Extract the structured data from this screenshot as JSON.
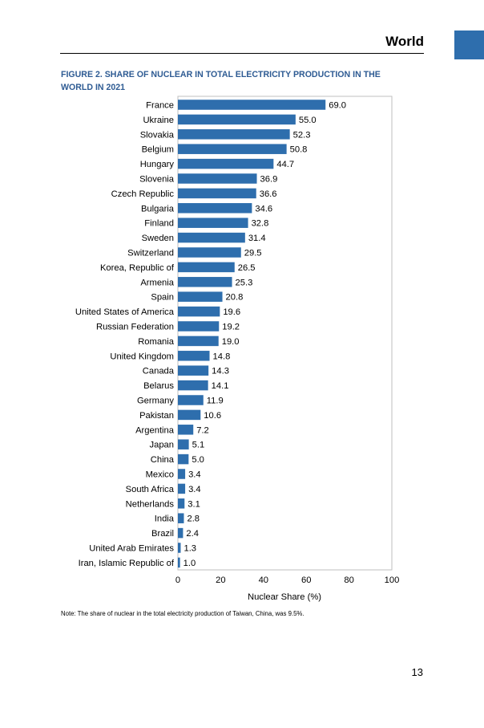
{
  "header": {
    "title": "World"
  },
  "figure": {
    "title": "FIGURE 2. SHARE OF NUCLEAR IN TOTAL ELECTRICITY PRODUCTION IN THE WORLD IN 2021"
  },
  "colors": {
    "bar": "#2e6ead",
    "title": "#2e5b93",
    "tab": "#2e6ead"
  },
  "chart_data": {
    "type": "bar",
    "orientation": "horizontal",
    "categories": [
      "France",
      "Ukraine",
      "Slovakia",
      "Belgium",
      "Hungary",
      "Slovenia",
      "Czech Republic",
      "Bulgaria",
      "Finland",
      "Sweden",
      "Switzerland",
      "Korea, Republic of",
      "Armenia",
      "Spain",
      "United States of America",
      "Russian Federation",
      "Romania",
      "United Kingdom",
      "Canada",
      "Belarus",
      "Germany",
      "Pakistan",
      "Argentina",
      "Japan",
      "China",
      "Mexico",
      "South Africa",
      "Netherlands",
      "India",
      "Brazil",
      "United Arab Emirates",
      "Iran, Islamic Republic of"
    ],
    "values": [
      69.0,
      55.0,
      52.3,
      50.8,
      44.7,
      36.9,
      36.6,
      34.6,
      32.8,
      31.4,
      29.5,
      26.5,
      25.3,
      20.8,
      19.6,
      19.2,
      19.0,
      14.8,
      14.3,
      14.1,
      11.9,
      10.6,
      7.2,
      5.1,
      5.0,
      3.4,
      3.4,
      3.1,
      2.8,
      2.4,
      1.3,
      1.0
    ],
    "value_labels": [
      "69.0",
      "55.0",
      "52.3",
      "50.8",
      "44.7",
      "36.9",
      "36.6",
      "34.6",
      "32.8",
      "31.4",
      "29.5",
      "26.5",
      "25.3",
      "20.8",
      "19.6",
      "19.2",
      "19.0",
      "14.8",
      "14.3",
      "14.1",
      "11.9",
      "10.6",
      "7.2",
      "5.1",
      "5.0",
      "3.4",
      "3.4",
      "3.1",
      "2.8",
      "2.4",
      "1.3",
      "1.0"
    ],
    "xlabel": "Nuclear Share (%)",
    "xlim": [
      0,
      100
    ],
    "xticks": [
      "0",
      "20",
      "40",
      "60",
      "80",
      "100"
    ],
    "grid": false,
    "legend": false
  },
  "note": "Note: The share of nuclear in the total electricity production of Taiwan, China, was 9.5%.",
  "page_number": "13"
}
